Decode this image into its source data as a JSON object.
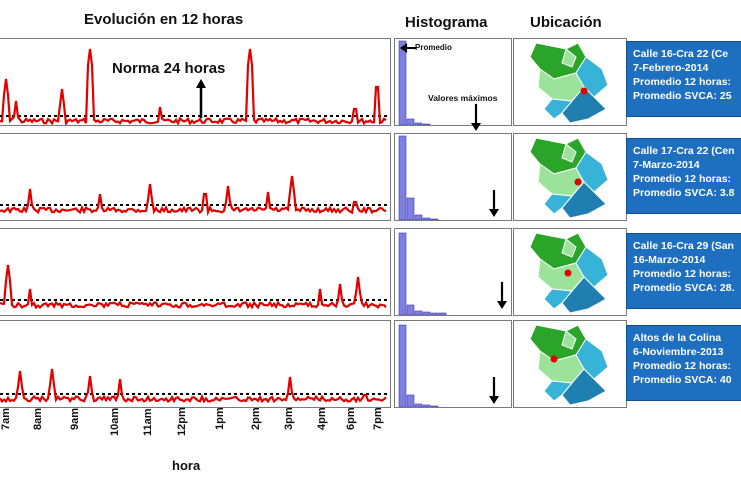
{
  "titles": {
    "evolution": "Evolución en 12 horas",
    "histogram": "Histograma",
    "location": "Ubicación"
  },
  "annotations": {
    "norma": "Norma 24 horas",
    "promedio": "Promedio",
    "valores_maximos": "Valores máximos"
  },
  "x_axis": {
    "label": "hora",
    "ticks": [
      "7am",
      "8am",
      "9am",
      "10am",
      "11am",
      "12pm",
      "1pm",
      "2pm",
      "3pm",
      "4pm",
      "6pm",
      "7pm"
    ]
  },
  "colors": {
    "series": "#e00000",
    "histogram": "#7f7fe0",
    "info_box": "#1f6fc0",
    "map_green_dark": "#2aa52a",
    "map_green_light": "#9be39b",
    "map_blue": "#36b3d6",
    "map_blue_dark": "#1e7fb0",
    "marker": "#e00000"
  },
  "stations": [
    {
      "location": "Calle 16-Cra 22  (Ce",
      "date": "7-Febrero-2014",
      "avg_12h_label": "Promedio 12 horas:",
      "svca_label": "Promedio SVCA: 25"
    },
    {
      "location": "Calle 17-Cra 22 (Cen",
      "date": "7-Marzo-2014",
      "avg_12h_label": "Promedio 12 horas:",
      "svca_label": "Promedio SVCA: 3.8"
    },
    {
      "location": "Calle 16-Cra 29 (San",
      "date": "16-Marzo-2014",
      "avg_12h_label": "Promedio 12 horas:",
      "svca_label": "Promedio SVCA: 28."
    },
    {
      "location": "Altos de la Colina",
      "date": "6-Noviembre-2013",
      "avg_12h_label": "Promedio 12 horas:",
      "svca_label": "Promedio SVCA: 40"
    }
  ]
}
